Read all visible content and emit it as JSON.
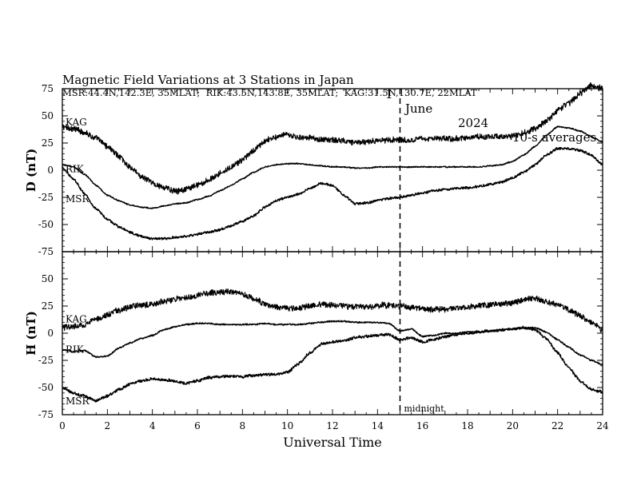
{
  "header": {
    "title": "Magnetic Field Variations at 3 Stations in Japan",
    "day": "1",
    "month": "June",
    "year": "2024",
    "averaging": "10-s averages",
    "stations_line": "MSR:44.4N,142.3E, 35MLAT;  RIK:43.5N,143.8E, 35MLAT;  KAG:31.5N,130.7E, 22MLAT"
  },
  "annotation": {
    "midnight_label": "midnight",
    "midnight_ut": 15
  },
  "colors": {
    "line": "#000000",
    "background": "#ffffff"
  },
  "chart_data": [
    {
      "type": "line",
      "ylabel": "D (nT)",
      "xlabel": "",
      "xlim": [
        0,
        24
      ],
      "ylim": [
        -75,
        75
      ],
      "yticks": [
        75,
        50,
        25,
        0,
        -25,
        -50,
        -75
      ],
      "grid": false,
      "series": [
        {
          "name": "KAG",
          "noise": 2.5,
          "x": [
            0,
            0.5,
            1,
            1.5,
            2,
            2.5,
            3,
            3.5,
            4,
            4.5,
            5,
            5.5,
            6,
            6.5,
            7,
            7.5,
            8,
            8.5,
            9,
            9.5,
            10,
            10.5,
            11,
            11.5,
            12,
            12.5,
            13,
            13.5,
            14,
            14.5,
            15,
            15.5,
            16,
            16.5,
            17,
            17.5,
            18,
            18.5,
            19,
            19.5,
            20,
            20.5,
            21,
            21.5,
            22,
            22.5,
            23,
            23.5,
            24
          ],
          "y": [
            40,
            38,
            35,
            29,
            22,
            13,
            3,
            -6,
            -12,
            -16,
            -19,
            -18,
            -14,
            -9,
            -3,
            3,
            9,
            18,
            27,
            31,
            32,
            30,
            30,
            28,
            28,
            27,
            26,
            26,
            27,
            28,
            28,
            28,
            29,
            29,
            29,
            29,
            30,
            31,
            31,
            31,
            31,
            34,
            38,
            45,
            55,
            62,
            70,
            78,
            75
          ]
        },
        {
          "name": "RIK",
          "noise": 0.5,
          "x": [
            0,
            0.5,
            1,
            1.5,
            2,
            2.5,
            3,
            3.5,
            4,
            4.5,
            5,
            5.5,
            6,
            6.5,
            7,
            7.5,
            8,
            8.5,
            9,
            9.5,
            10,
            10.5,
            11,
            11.5,
            12,
            12.5,
            13,
            13.5,
            14,
            14.5,
            15,
            15.5,
            16,
            16.5,
            17,
            17.5,
            18,
            18.5,
            19,
            19.5,
            20,
            20.5,
            21,
            21.5,
            22,
            22.5,
            23,
            23.5,
            24
          ],
          "y": [
            5,
            3,
            -4,
            -14,
            -23,
            -28,
            -32,
            -34,
            -35,
            -33,
            -31,
            -30,
            -27,
            -24,
            -19,
            -14,
            -8,
            -2,
            3,
            5,
            6,
            6,
            5,
            4,
            3,
            3,
            2,
            2,
            3,
            3,
            3,
            3,
            3,
            3,
            3,
            3,
            3,
            3,
            4,
            5,
            8,
            14,
            22,
            32,
            40,
            39,
            36,
            31,
            26
          ]
        },
        {
          "name": "MSR",
          "noise": 1.0,
          "x": [
            0,
            0.5,
            1,
            1.5,
            2,
            2.5,
            3,
            3.5,
            4,
            4.5,
            5,
            5.5,
            6,
            6.5,
            7,
            7.5,
            8,
            8.5,
            9,
            9.5,
            10,
            10.5,
            11,
            11.5,
            12,
            12.5,
            13,
            13.5,
            14,
            14.5,
            15,
            15.5,
            16,
            16.5,
            17,
            17.5,
            18,
            18.5,
            19,
            19.5,
            20,
            20.5,
            21,
            21.5,
            22,
            22.5,
            23,
            23.5,
            24
          ],
          "y": [
            2,
            -8,
            -22,
            -36,
            -45,
            -52,
            -57,
            -61,
            -63,
            -63,
            -62,
            -61,
            -59,
            -57,
            -55,
            -51,
            -47,
            -42,
            -34,
            -28,
            -25,
            -22,
            -17,
            -12,
            -14,
            -23,
            -31,
            -30,
            -28,
            -26,
            -25,
            -23,
            -21,
            -19,
            -18,
            -17,
            -16,
            -15,
            -13,
            -11,
            -7,
            -2,
            5,
            14,
            20,
            20,
            18,
            14,
            5
          ]
        }
      ]
    },
    {
      "type": "line",
      "ylabel": "H (nT)",
      "xlabel": "Universal Time",
      "xlim": [
        0,
        24
      ],
      "ylim": [
        -75,
        75
      ],
      "yticks": [
        75,
        50,
        25,
        0,
        -25,
        -50,
        -75
      ],
      "xticks": [
        0,
        2,
        4,
        6,
        8,
        10,
        12,
        14,
        16,
        18,
        20,
        22,
        24
      ],
      "grid": false,
      "series": [
        {
          "name": "KAG",
          "noise": 2.5,
          "x": [
            0,
            0.5,
            1,
            1.5,
            2,
            2.5,
            3,
            3.5,
            4,
            4.5,
            5,
            5.5,
            6,
            6.5,
            7,
            7.5,
            8,
            8.5,
            9,
            9.5,
            10,
            10.5,
            11,
            11.5,
            12,
            12.5,
            13,
            13.5,
            14,
            14.5,
            15,
            15.5,
            16,
            16.5,
            17,
            17.5,
            18,
            18.5,
            19,
            19.5,
            20,
            20.5,
            21,
            21.5,
            22,
            22.5,
            23,
            23.5,
            24
          ],
          "y": [
            5,
            6,
            8,
            13,
            17,
            21,
            24,
            26,
            27,
            29,
            31,
            33,
            35,
            37,
            38,
            38,
            36,
            32,
            27,
            24,
            23,
            23,
            25,
            26,
            26,
            25,
            24,
            24,
            25,
            26,
            25,
            24,
            22,
            22,
            22,
            23,
            24,
            25,
            26,
            27,
            28,
            31,
            32,
            29,
            26,
            22,
            16,
            10,
            3
          ]
        },
        {
          "name": "RIK",
          "noise": 0.6,
          "x": [
            0,
            0.5,
            1,
            1.5,
            2,
            2.5,
            3,
            3.5,
            4,
            4.5,
            5,
            5.5,
            6,
            6.5,
            7,
            7.5,
            8,
            8.5,
            9,
            9.5,
            10,
            10.5,
            11,
            11.5,
            12,
            12.5,
            13,
            13.5,
            14,
            14.5,
            15,
            15.5,
            16,
            16.5,
            17,
            17.5,
            18,
            18.5,
            19,
            19.5,
            20,
            20.5,
            21,
            21.5,
            22,
            22.5,
            23,
            23.5,
            24
          ],
          "y": [
            -15,
            -17,
            -16,
            -22,
            -21,
            -14,
            -9,
            -5,
            -2,
            3,
            6,
            8,
            9,
            9,
            8,
            8,
            8,
            8,
            9,
            8,
            8,
            8,
            9,
            10,
            11,
            11,
            10,
            10,
            10,
            9,
            2,
            4,
            -3,
            -2,
            0,
            0,
            1,
            1,
            2,
            3,
            4,
            5,
            5,
            1,
            -6,
            -13,
            -20,
            -25,
            -29
          ]
        },
        {
          "name": "MSR",
          "noise": 1.2,
          "x": [
            0,
            0.5,
            1,
            1.5,
            2,
            2.5,
            3,
            3.5,
            4,
            4.5,
            5,
            5.5,
            6,
            6.5,
            7,
            7.5,
            8,
            8.5,
            9,
            9.5,
            10,
            10.5,
            11,
            11.5,
            12,
            12.5,
            13,
            13.5,
            14,
            14.5,
            15,
            15.5,
            16,
            16.5,
            17,
            17.5,
            18,
            18.5,
            19,
            19.5,
            20,
            20.5,
            21,
            21.5,
            22,
            22.5,
            23,
            23.5,
            24
          ],
          "y": [
            -50,
            -55,
            -58,
            -62,
            -58,
            -52,
            -47,
            -44,
            -42,
            -43,
            -44,
            -46,
            -44,
            -41,
            -40,
            -40,
            -40,
            -39,
            -38,
            -38,
            -36,
            -28,
            -18,
            -10,
            -8,
            -7,
            -4,
            -3,
            -2,
            -1,
            -6,
            -4,
            -8,
            -6,
            -3,
            -1,
            0,
            1,
            2,
            3,
            4,
            5,
            3,
            -5,
            -18,
            -32,
            -44,
            -52,
            -54
          ]
        }
      ]
    }
  ]
}
